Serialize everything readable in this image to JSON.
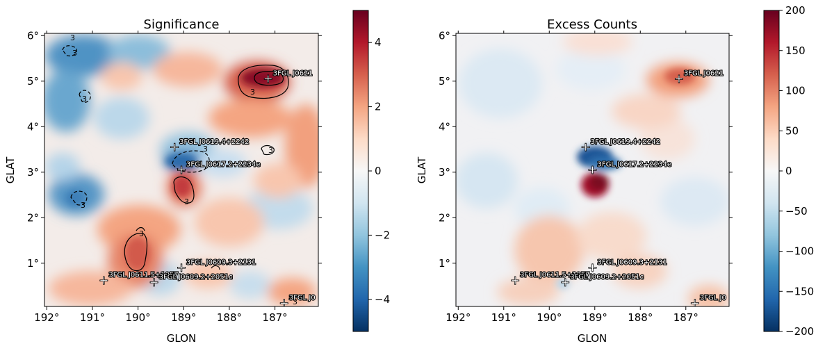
{
  "chart_data": [
    {
      "type": "heatmap",
      "title": "Significance",
      "xlabel": "GLON",
      "ylabel": "GLAT",
      "x_ticks": [
        "192°",
        "191°",
        "190°",
        "189°",
        "188°",
        "187°"
      ],
      "y_ticks": [
        "6°",
        "5°",
        "4°",
        "3°",
        "2°",
        "1°"
      ],
      "xlim": [
        192.05,
        186.05
      ],
      "ylim": [
        0.05,
        6.05
      ],
      "colorbar": {
        "min": -5,
        "max": 5,
        "ticks": [
          "4",
          "2",
          "0",
          "−2",
          "−4"
        ],
        "colormap": "RdBu_r"
      },
      "contour_labels": [
        "3",
        "3",
        "3",
        "3",
        "3",
        "3",
        "3",
        "3",
        "3",
        "3"
      ],
      "sources": [
        {
          "name": "3FGL J0621",
          "glon": 187.15,
          "glat": 5.05
        },
        {
          "name": "3FGL J0619.4+2242",
          "glon": 189.2,
          "glat": 3.55
        },
        {
          "name": "3FGL J0617.2+2234e",
          "glon": 189.05,
          "glat": 3.05
        },
        {
          "name": "3FGL J0609.3+2131",
          "glon": 189.05,
          "glat": 0.9
        },
        {
          "name": "3FGL J0611.5+1957",
          "glon": 190.75,
          "glat": 0.62
        },
        {
          "name": "3FGL J0609.2+2051c",
          "glon": 189.65,
          "glat": 0.58
        },
        {
          "name": "3FGL J0",
          "glon": 186.8,
          "glat": 0.12
        }
      ]
    },
    {
      "type": "heatmap",
      "title": "Excess Counts",
      "xlabel": "GLON",
      "ylabel": "GLAT",
      "x_ticks": [
        "192°",
        "191°",
        "190°",
        "189°",
        "188°",
        "187°"
      ],
      "y_ticks": [
        "6°",
        "5°",
        "4°",
        "3°",
        "2°",
        "1°"
      ],
      "xlim": [
        192.05,
        186.05
      ],
      "ylim": [
        0.05,
        6.05
      ],
      "colorbar": {
        "min": -200,
        "max": 200,
        "ticks": [
          "200",
          "150",
          "100",
          "50",
          "0",
          "−50",
          "−100",
          "−150",
          "−200"
        ],
        "colormap": "RdBu_r"
      },
      "sources": [
        {
          "name": "3FGL J0621",
          "glon": 187.15,
          "glat": 5.05
        },
        {
          "name": "3FGL J0619.4+2242",
          "glon": 189.2,
          "glat": 3.55
        },
        {
          "name": "3FGL J0617.2+2234e",
          "glon": 189.05,
          "glat": 3.05
        },
        {
          "name": "3FGL J0609.3+2131",
          "glon": 189.05,
          "glat": 0.9
        },
        {
          "name": "3FGL J0611.5+1957",
          "glon": 190.75,
          "glat": 0.62
        },
        {
          "name": "3FGL J0609.2+2051c",
          "glon": 189.65,
          "glat": 0.58
        },
        {
          "name": "3FGL J0",
          "glon": 186.8,
          "glat": 0.12
        }
      ]
    }
  ]
}
